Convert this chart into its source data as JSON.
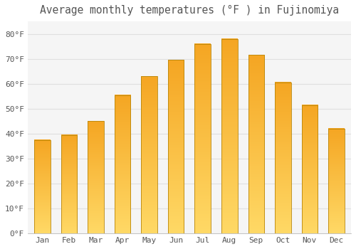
{
  "title": "Average monthly temperatures (°F ) in Fujinomiya",
  "months": [
    "Jan",
    "Feb",
    "Mar",
    "Apr",
    "May",
    "Jun",
    "Jul",
    "Aug",
    "Sep",
    "Oct",
    "Nov",
    "Dec"
  ],
  "values": [
    37.5,
    39.5,
    45.0,
    55.5,
    63.0,
    69.5,
    76.0,
    78.0,
    71.5,
    60.5,
    51.5,
    42.0
  ],
  "bar_color_top": "#F5A623",
  "bar_color_bottom": "#FFD966",
  "bar_edge_color": "#B8860B",
  "background_color": "#ffffff",
  "plot_bg_color": "#f5f5f5",
  "grid_color": "#e0e0e0",
  "text_color": "#555555",
  "yticks": [
    0,
    10,
    20,
    30,
    40,
    50,
    60,
    70,
    80
  ],
  "ylim": [
    0,
    85
  ],
  "title_fontsize": 10.5,
  "tick_fontsize": 8
}
